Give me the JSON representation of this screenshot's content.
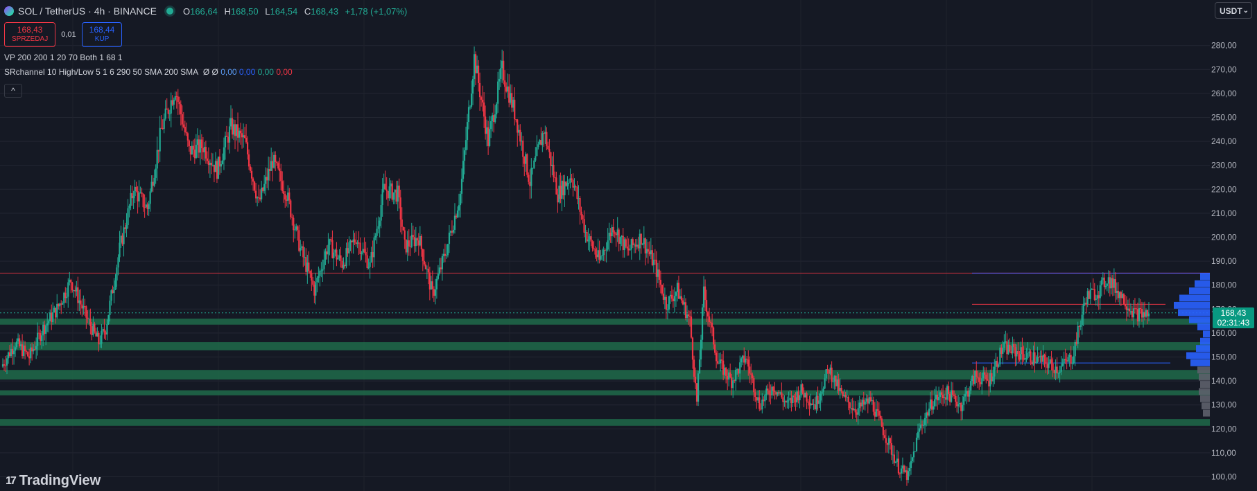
{
  "header": {
    "title": "SOL / TetherUS · 4h · BINANCE",
    "ohlc": [
      {
        "k": "O",
        "v": "166,64"
      },
      {
        "k": "H",
        "v": "168,50"
      },
      {
        "k": "L",
        "v": "164,54"
      },
      {
        "k": "C",
        "v": "168,43"
      }
    ],
    "change": "+1,78 (+1,07%)"
  },
  "trade": {
    "sell_price": "168,43",
    "sell_label": "SPRZEDAJ",
    "spread": "0,01",
    "buy_price": "168,44",
    "buy_label": "KUP"
  },
  "indicators": {
    "vp": "VP 200 200 1 20 70 Both 1 68 1",
    "sr_label": "SRchannel 10 High/Low 5 1 6 290 50 SMA 200 SMA",
    "sr_symbols": "Ø Ø",
    "sr_v1": "0,00",
    "sr_v2": "0,00",
    "sr_v3": "0,00",
    "sr_v4": "0,00"
  },
  "collapse_glyph": "^",
  "currency": "USDT",
  "currency_chevron": "⌄",
  "price_tag": {
    "price": "168,43",
    "countdown": "02:31:43"
  },
  "branding": {
    "icon": "17",
    "name": "TradingView"
  },
  "colors": {
    "background": "#151924",
    "up": "#22ab94",
    "down": "#f23645",
    "sr_zone": "#1e6b4a",
    "vp_up": "#2962ff",
    "vp_down": "#5d606b"
  },
  "chart_data": {
    "type": "candlestick",
    "symbol": "SOL / TetherUS",
    "interval": "4h",
    "ylim": [
      96,
      286
    ],
    "y_ticks": [
      100,
      110,
      120,
      130,
      140,
      150,
      160,
      170,
      180,
      190,
      200,
      210,
      220,
      230,
      240,
      250,
      260,
      270,
      280
    ],
    "y_tick_labels": [
      "100,00",
      "110,00",
      "120,00",
      "130,00",
      "140,00",
      "150,00",
      "160,00",
      "170,00",
      "180,00",
      "190,00",
      "200,00",
      "210,00",
      "220,00",
      "230,00",
      "240,00",
      "250,00",
      "260,00",
      "270,00",
      "280,00"
    ],
    "bar_count": 500,
    "price_path": [
      [
        0,
        146
      ],
      [
        10,
        156
      ],
      [
        20,
        150
      ],
      [
        30,
        162
      ],
      [
        40,
        170
      ],
      [
        50,
        182
      ],
      [
        60,
        168
      ],
      [
        70,
        156
      ],
      [
        75,
        162
      ],
      [
        85,
        195
      ],
      [
        95,
        220
      ],
      [
        105,
        212
      ],
      [
        115,
        245
      ],
      [
        125,
        262
      ],
      [
        135,
        236
      ],
      [
        145,
        238
      ],
      [
        155,
        228
      ],
      [
        165,
        246
      ],
      [
        175,
        240
      ],
      [
        185,
        214
      ],
      [
        195,
        232
      ],
      [
        205,
        218
      ],
      [
        215,
        195
      ],
      [
        225,
        178
      ],
      [
        235,
        197
      ],
      [
        245,
        189
      ],
      [
        255,
        200
      ],
      [
        265,
        188
      ],
      [
        275,
        220
      ],
      [
        285,
        218
      ],
      [
        290,
        196
      ],
      [
        300,
        200
      ],
      [
        310,
        176
      ],
      [
        320,
        195
      ],
      [
        330,
        218
      ],
      [
        340,
        275
      ],
      [
        350,
        240
      ],
      [
        360,
        270
      ],
      [
        370,
        250
      ],
      [
        380,
        223
      ],
      [
        390,
        245
      ],
      [
        400,
        218
      ],
      [
        410,
        226
      ],
      [
        420,
        202
      ],
      [
        430,
        190
      ],
      [
        440,
        205
      ],
      [
        450,
        194
      ],
      [
        460,
        200
      ],
      [
        470,
        188
      ],
      [
        478,
        172
      ],
      [
        486,
        178
      ],
      [
        495,
        165
      ],
      [
        500,
        131
      ],
      [
        505,
        177
      ],
      [
        515,
        148
      ],
      [
        525,
        140
      ],
      [
        535,
        150
      ],
      [
        545,
        130
      ],
      [
        555,
        138
      ],
      [
        565,
        130
      ],
      [
        575,
        136
      ],
      [
        585,
        130
      ],
      [
        595,
        145
      ],
      [
        605,
        133
      ],
      [
        615,
        128
      ],
      [
        625,
        132
      ],
      [
        635,
        118
      ],
      [
        645,
        104
      ],
      [
        652,
        100
      ],
      [
        660,
        120
      ],
      [
        670,
        132
      ],
      [
        680,
        135
      ],
      [
        690,
        130
      ],
      [
        700,
        142
      ],
      [
        710,
        140
      ],
      [
        720,
        154
      ],
      [
        730,
        152
      ],
      [
        740,
        150
      ],
      [
        750,
        148
      ],
      [
        760,
        145
      ],
      [
        770,
        150
      ],
      [
        780,
        175
      ],
      [
        790,
        178
      ],
      [
        795,
        183
      ],
      [
        805,
        176
      ],
      [
        815,
        168
      ],
      [
        825,
        168
      ]
    ],
    "sr_zones": [
      [
        163.5,
        166.0
      ],
      [
        152.8,
        156.2
      ],
      [
        140.6,
        144.6
      ],
      [
        134.0,
        136.1
      ],
      [
        121.3,
        124.1
      ]
    ],
    "sr_line": 185,
    "current_price": 168.43,
    "volume_profile": {
      "lines": [
        {
          "price": 185,
          "color": "#5d5df5"
        },
        {
          "price": 172,
          "color": "#f23645"
        },
        {
          "price": 147.5,
          "color": "#2962ff"
        }
      ],
      "levels": [
        {
          "price": 183.5,
          "up": 14,
          "down": 0
        },
        {
          "price": 180.5,
          "up": 22,
          "down": 0
        },
        {
          "price": 177.5,
          "up": 30,
          "down": 0
        },
        {
          "price": 174.5,
          "up": 44,
          "down": 0
        },
        {
          "price": 171.5,
          "up": 52,
          "down": 0
        },
        {
          "price": 168.5,
          "up": 46,
          "down": 0
        },
        {
          "price": 165.5,
          "up": 30,
          "down": 0
        },
        {
          "price": 162.5,
          "up": 18,
          "down": 0
        },
        {
          "price": 159.5,
          "up": 10,
          "down": 0
        },
        {
          "price": 156.5,
          "up": 14,
          "down": 0
        },
        {
          "price": 153.5,
          "up": 20,
          "down": 0
        },
        {
          "price": 150.5,
          "up": 34,
          "down": 0
        },
        {
          "price": 147.5,
          "up": 28,
          "down": 0
        },
        {
          "price": 144.5,
          "up": 0,
          "down": 18
        },
        {
          "price": 141.5,
          "up": 0,
          "down": 16
        },
        {
          "price": 138.5,
          "up": 0,
          "down": 14
        },
        {
          "price": 135.5,
          "up": 0,
          "down": 16
        },
        {
          "price": 132.5,
          "up": 0,
          "down": 14
        },
        {
          "price": 129.5,
          "up": 0,
          "down": 12
        },
        {
          "price": 126.5,
          "up": 0,
          "down": 10
        }
      ]
    }
  }
}
